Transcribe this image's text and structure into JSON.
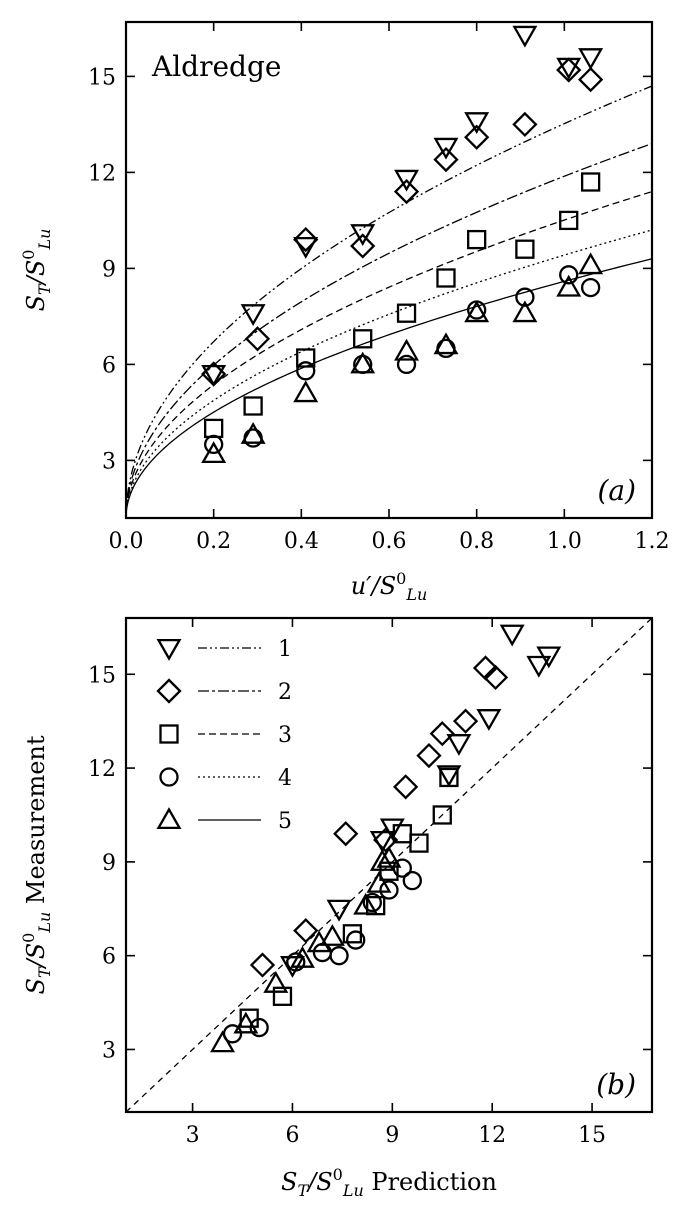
{
  "chart_data": [
    {
      "type": "scatter",
      "panel": "(a)",
      "annotation": "Aldredge",
      "xlabel": {
        "main": "u′/S",
        "sup": "0",
        "sub": "Lu"
      },
      "ylabel": {
        "main": "S",
        "sub1": "T",
        "sep": "/S",
        "sup": "0",
        "sub2": "Lu"
      },
      "xlim": [
        0,
        1.2
      ],
      "ylim": [
        1.2,
        16.7
      ],
      "xticks": [
        0.0,
        0.2,
        0.4,
        0.6,
        0.8,
        1.0,
        1.2
      ],
      "xtick_labels": [
        "0.0",
        "0.2",
        "0.4",
        "0.6",
        "0.8",
        "1.0",
        "1.2"
      ],
      "yticks": [
        3,
        6,
        9,
        12,
        15
      ],
      "ytick_labels": [
        "3",
        "6",
        "9",
        "12",
        "15"
      ],
      "grid": false,
      "series": [
        {
          "marker": "triangle-down",
          "line": "dashdotdot",
          "points": [
            [
              0.2,
              5.7
            ],
            [
              0.29,
              7.6
            ],
            [
              0.41,
              9.7
            ],
            [
              0.54,
              10.1
            ],
            [
              0.64,
              11.8
            ],
            [
              0.73,
              12.8
            ],
            [
              0.8,
              13.6
            ],
            [
              0.91,
              16.3
            ],
            [
              1.01,
              15.3
            ],
            [
              1.06,
              15.6
            ]
          ]
        },
        {
          "marker": "diamond",
          "line": "dashdot",
          "points": [
            [
              0.2,
              5.7
            ],
            [
              0.3,
              6.8
            ],
            [
              0.41,
              9.9
            ],
            [
              0.54,
              9.7
            ],
            [
              0.64,
              11.4
            ],
            [
              0.73,
              12.4
            ],
            [
              0.8,
              13.1
            ],
            [
              0.91,
              13.5
            ],
            [
              1.01,
              15.2
            ],
            [
              1.06,
              14.9
            ]
          ]
        },
        {
          "marker": "square",
          "line": "dashed",
          "points": [
            [
              0.2,
              4.0
            ],
            [
              0.29,
              4.7
            ],
            [
              0.41,
              6.2
            ],
            [
              0.54,
              6.8
            ],
            [
              0.64,
              7.6
            ],
            [
              0.73,
              8.7
            ],
            [
              0.8,
              9.9
            ],
            [
              0.91,
              9.6
            ],
            [
              1.01,
              10.5
            ],
            [
              1.06,
              11.7
            ]
          ]
        },
        {
          "marker": "circle",
          "line": "dotted",
          "points": [
            [
              0.2,
              3.5
            ],
            [
              0.29,
              3.7
            ],
            [
              0.41,
              5.8
            ],
            [
              0.54,
              6.0
            ],
            [
              0.64,
              6.0
            ],
            [
              0.73,
              6.5
            ],
            [
              0.8,
              7.7
            ],
            [
              0.91,
              8.1
            ],
            [
              1.01,
              8.8
            ],
            [
              1.06,
              8.4
            ]
          ]
        },
        {
          "marker": "triangle-up",
          "line": "solid",
          "points": [
            [
              0.2,
              3.2
            ],
            [
              0.29,
              3.8
            ],
            [
              0.41,
              5.1
            ],
            [
              0.54,
              6.0
            ],
            [
              0.64,
              6.4
            ],
            [
              0.73,
              6.6
            ],
            [
              0.8,
              7.6
            ],
            [
              0.91,
              7.6
            ],
            [
              1.01,
              8.4
            ],
            [
              1.06,
              9.1
            ]
          ]
        }
      ],
      "fit_curves": [
        {
          "line": "dashdotdot",
          "y_at_1_2": 14.7
        },
        {
          "line": "dashdot",
          "y_at_1_2": 12.9
        },
        {
          "line": "dashed",
          "y_at_1_2": 11.4
        },
        {
          "line": "dotted",
          "y_at_1_2": 10.2
        },
        {
          "line": "solid",
          "y_at_1_2": 9.3
        }
      ]
    },
    {
      "type": "scatter",
      "panel": "(b)",
      "xlabel": {
        "main": "S",
        "sub1": "T",
        "sep": "/S",
        "sup": "0",
        "sub2": "Lu",
        "rest": " Prediction"
      },
      "ylabel": {
        "main": "S",
        "sub1": "T",
        "sep": "/S",
        "sup": "0",
        "sub2": "Lu",
        "rest": " Measurement"
      },
      "xlim": [
        1.0,
        16.8
      ],
      "ylim": [
        1.0,
        16.8
      ],
      "xticks": [
        3,
        6,
        9,
        12,
        15
      ],
      "xtick_labels": [
        "3",
        "6",
        "9",
        "12",
        "15"
      ],
      "yticks": [
        3,
        6,
        9,
        12,
        15
      ],
      "ytick_labels": [
        "3",
        "6",
        "9",
        "12",
        "15"
      ],
      "grid": false,
      "reference_line": "y = x (dashed)",
      "legend_position": "top-left",
      "legend": [
        {
          "marker": "triangle-down",
          "line": "dashdotdot",
          "label": "1"
        },
        {
          "marker": "diamond",
          "line": "dashdot",
          "label": "2"
        },
        {
          "marker": "square",
          "line": "dashed",
          "label": "3"
        },
        {
          "marker": "circle",
          "line": "dotted",
          "label": "4"
        },
        {
          "marker": "triangle-up",
          "line": "solid",
          "label": "5"
        }
      ],
      "series": [
        {
          "name": "1",
          "marker": "triangle-down",
          "points": [
            [
              6.0,
              5.7
            ],
            [
              7.4,
              7.5
            ],
            [
              8.7,
              9.7
            ],
            [
              9.0,
              10.1
            ],
            [
              11.0,
              12.8
            ],
            [
              11.9,
              13.6
            ],
            [
              12.6,
              16.3
            ],
            [
              13.4,
              15.3
            ],
            [
              13.7,
              15.6
            ],
            [
              10.7,
              11.8
            ]
          ]
        },
        {
          "name": "2",
          "marker": "diamond",
          "points": [
            [
              5.1,
              5.7
            ],
            [
              6.4,
              6.8
            ],
            [
              7.6,
              9.9
            ],
            [
              9.4,
              11.4
            ],
            [
              10.1,
              12.4
            ],
            [
              10.5,
              13.1
            ],
            [
              11.2,
              13.5
            ],
            [
              11.8,
              15.2
            ],
            [
              12.1,
              14.9
            ],
            [
              8.8,
              9.7
            ]
          ]
        },
        {
          "name": "3",
          "marker": "square",
          "points": [
            [
              4.7,
              4.0
            ],
            [
              5.7,
              4.7
            ],
            [
              7.8,
              6.7
            ],
            [
              8.5,
              7.6
            ],
            [
              8.9,
              8.7
            ],
            [
              9.3,
              9.9
            ],
            [
              9.8,
              9.6
            ],
            [
              10.5,
              10.5
            ],
            [
              10.7,
              11.7
            ]
          ]
        },
        {
          "name": "4",
          "marker": "circle",
          "points": [
            [
              4.2,
              3.5
            ],
            [
              5.0,
              3.7
            ],
            [
              6.1,
              5.8
            ],
            [
              6.9,
              6.1
            ],
            [
              7.4,
              6.0
            ],
            [
              7.9,
              6.5
            ],
            [
              8.4,
              7.7
            ],
            [
              8.9,
              8.1
            ],
            [
              9.3,
              8.8
            ],
            [
              9.6,
              8.4
            ]
          ]
        },
        {
          "name": "5",
          "marker": "triangle-up",
          "points": [
            [
              3.9,
              3.2
            ],
            [
              4.6,
              3.8
            ],
            [
              5.5,
              5.1
            ],
            [
              6.3,
              5.9
            ],
            [
              6.8,
              6.4
            ],
            [
              7.2,
              6.6
            ],
            [
              8.2,
              7.6
            ],
            [
              8.6,
              8.3
            ],
            [
              8.9,
              9.1
            ],
            [
              8.7,
              9.0
            ]
          ]
        }
      ]
    }
  ]
}
